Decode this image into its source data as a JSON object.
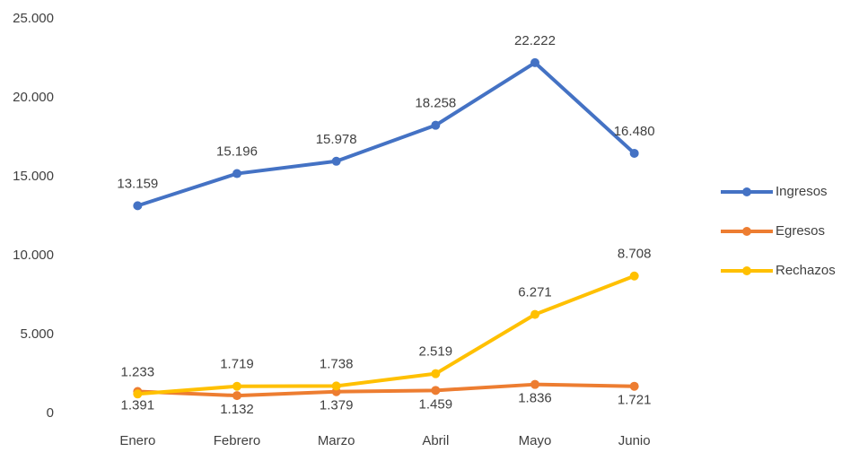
{
  "chart_data": {
    "type": "line",
    "categories": [
      "Enero",
      "Febrero",
      "Marzo",
      "Abril",
      "Mayo",
      "Junio"
    ],
    "series": [
      {
        "name": "Ingresos",
        "color": "#4472c4",
        "values": [
          13159,
          15196,
          15978,
          18258,
          22222,
          16480
        ],
        "value_labels": [
          "13.159",
          "15.196",
          "15.978",
          "18.258",
          "22.222",
          "16.480"
        ]
      },
      {
        "name": "Egresos",
        "color": "#ed7d31",
        "values": [
          1391,
          1132,
          1379,
          1459,
          1836,
          1721
        ],
        "value_labels": [
          "1.391",
          "1.132",
          "1.379",
          "1.459",
          "1.836",
          "1.721"
        ]
      },
      {
        "name": "Rechazos",
        "color": "#ffc000",
        "values": [
          1233,
          1719,
          1738,
          2519,
          6271,
          8708
        ],
        "value_labels": [
          "1.233",
          "1.719",
          "1.738",
          "2.519",
          "6.271",
          "8.708"
        ]
      }
    ],
    "ylim": [
      0,
      25000
    ],
    "yticks": [
      0,
      {
        "value": 5000,
        "label": "5.000"
      },
      {
        "value": 10000,
        "label": "10.000"
      },
      {
        "value": 15000,
        "label": "15.000"
      },
      {
        "value": 20000,
        "label": "20.000"
      },
      {
        "value": 25000,
        "label": "25.000"
      }
    ],
    "grid": false,
    "legend": "right"
  }
}
